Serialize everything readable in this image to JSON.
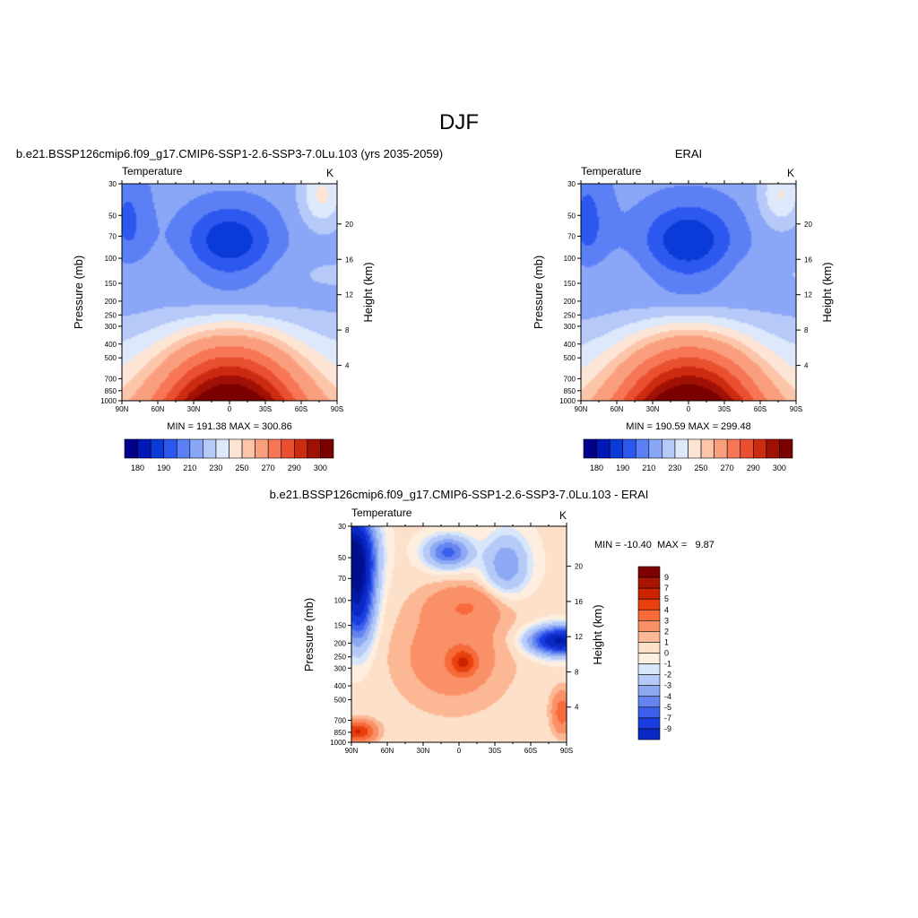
{
  "main_title": "DJF",
  "panels": [
    {
      "id": "model",
      "header": "b.e21.BSSP126cmip6.f09_g17.CMIP6-SSP1-2.6-SSP3-7.0Lu.103 (yrs 2035-2059)",
      "left_label": "Temperature",
      "right_label": "K",
      "ylabel": "Pressure (mb)",
      "ylabel_right": "Height (km)",
      "minmax": "MIN = 191.38  MAX = 300.86",
      "kind": "abs"
    },
    {
      "id": "erai",
      "header": "ERAI",
      "left_label": "Temperature",
      "right_label": "K",
      "ylabel": "Pressure (mb)",
      "ylabel_right": "Height (km)",
      "minmax": "MIN = 190.59  MAX = 299.48",
      "kind": "abs"
    },
    {
      "id": "diff",
      "header": "b.e21.BSSP126cmip6.f09_g17.CMIP6-SSP1-2.6-SSP3-7.0Lu.103 - ERAI",
      "left_label": "Temperature",
      "right_label": "K",
      "ylabel": "Pressure (mb)",
      "ylabel_right": "Height (km)",
      "minmax": "MIN = -10.40  MAX =   9.87",
      "kind": "diff"
    }
  ],
  "axes": {
    "x_ticks": [
      "90N",
      "60N",
      "30N",
      "0",
      "30S",
      "60S",
      "90S"
    ],
    "x_values": [
      90,
      60,
      30,
      0,
      -30,
      -60,
      -90
    ],
    "pressure_ticks": [
      30,
      50,
      70,
      100,
      150,
      200,
      250,
      300,
      400,
      500,
      700,
      850,
      1000
    ],
    "height_ticks": [
      4,
      8,
      12,
      16,
      20
    ]
  },
  "colorbars": {
    "abs": {
      "colors": [
        "#00008c",
        "#0018b8",
        "#0a3ad8",
        "#2d58f0",
        "#5b7ff5",
        "#8aa6f6",
        "#b6c9f9",
        "#dde9fb",
        "#fde4d4",
        "#fcc4a8",
        "#fa9f7e",
        "#f67656",
        "#e9502f",
        "#cc2b12",
        "#a01004",
        "#7a0000"
      ],
      "labels": [
        "180",
        "190",
        "210",
        "230",
        "250",
        "270",
        "290",
        "300"
      ]
    },
    "diff": {
      "colors": [
        "#7f0000",
        "#a81500",
        "#cc2200",
        "#e8400e",
        "#f76a3a",
        "#fa9068",
        "#fcb794",
        "#fde0c9",
        "#fdeee0",
        "#d8e6fb",
        "#b6caf8",
        "#8ea9f4",
        "#6585f0",
        "#3b60ec",
        "#1a3de0",
        "#0a28c4",
        "#001aa8",
        "#00108c"
      ],
      "labels": [
        "9",
        "7",
        "5",
        "4",
        "3",
        "2",
        "1",
        "0",
        "-1",
        "-2",
        "-3",
        "-4",
        "-5",
        "-7",
        "-9"
      ]
    }
  },
  "chart_data": [
    {
      "type": "heatmap",
      "title": "b.e21.BSSP126cmip6.f09_g17.CMIP6-SSP1-2.6-SSP3-7.0Lu.103 (yrs 2035-2059)",
      "variable": "Temperature",
      "units": "K",
      "xlabel": "",
      "ylabel": "Pressure (mb)",
      "ylabel_right": "Height (km)",
      "xlim": [
        90,
        -90
      ],
      "ylim": [
        1000,
        30
      ],
      "y_scale": "log",
      "min": 191.38,
      "max": 300.86,
      "colorbar_levels": [
        180,
        190,
        210,
        230,
        250,
        270,
        290,
        300
      ]
    },
    {
      "type": "heatmap",
      "title": "ERAI",
      "variable": "Temperature",
      "units": "K",
      "xlabel": "",
      "ylabel": "Pressure (mb)",
      "ylabel_right": "Height (km)",
      "xlim": [
        90,
        -90
      ],
      "ylim": [
        1000,
        30
      ],
      "y_scale": "log",
      "min": 190.59,
      "max": 299.48,
      "colorbar_levels": [
        180,
        190,
        210,
        230,
        250,
        270,
        290,
        300
      ]
    },
    {
      "type": "heatmap",
      "title": "b.e21.BSSP126cmip6.f09_g17.CMIP6-SSP1-2.6-SSP3-7.0Lu.103 - ERAI",
      "variable": "Temperature",
      "units": "K",
      "xlabel": "",
      "ylabel": "Pressure (mb)",
      "ylabel_right": "Height (km)",
      "xlim": [
        90,
        -90
      ],
      "ylim": [
        1000,
        30
      ],
      "y_scale": "log",
      "min": -10.4,
      "max": 9.87,
      "colorbar_levels": [
        9,
        7,
        5,
        4,
        3,
        2,
        1,
        0,
        -1,
        -2,
        -3,
        -4,
        -5,
        -7,
        -9
      ]
    }
  ]
}
